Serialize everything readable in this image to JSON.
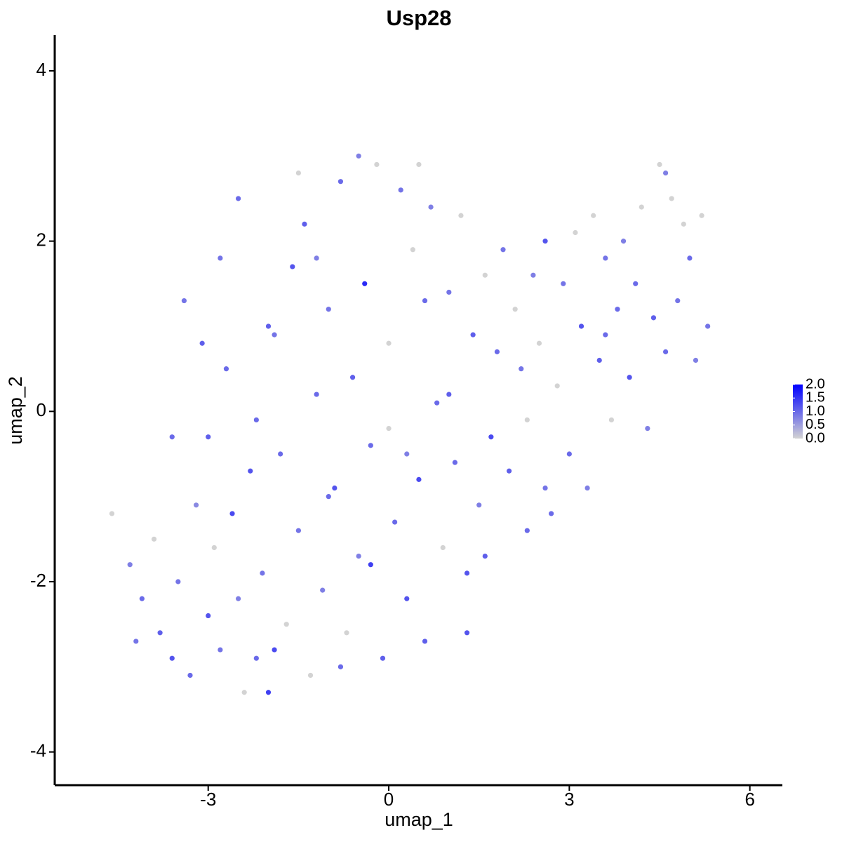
{
  "chart_data": {
    "type": "scatter",
    "title": "Usp28",
    "x_label": "umap_1",
    "y_label": "umap_2",
    "xlim": [
      -5.55,
      6.54
    ],
    "ylim": [
      -4.39,
      4.42
    ],
    "xticks": [
      -3,
      0,
      3,
      6
    ],
    "yticks": [
      -4,
      -2,
      0,
      2,
      4
    ],
    "low_color": "#d3d3d3",
    "high_color": "#0000ff",
    "color_lim": [
      0,
      2
    ],
    "color_ticks": [
      {
        "value": 0,
        "label": "0.0"
      },
      {
        "value": 0.5,
        "label": "0.5"
      },
      {
        "value": 1,
        "label": "1.0"
      },
      {
        "value": 1.5,
        "label": "1.5"
      },
      {
        "value": 2,
        "label": "2.0"
      }
    ],
    "x": [
      -4.6,
      -4.3,
      -4.1,
      -3.9,
      -3.8,
      -3.6,
      -3.5,
      -3.3,
      -3.2,
      -3.0,
      -3.0,
      -2.9,
      -2.8,
      -2.7,
      -2.6,
      -2.5,
      -2.4,
      -2.3,
      -2.2,
      -2.1,
      -2.0,
      -1.9,
      -1.8,
      -1.7,
      -1.6,
      -1.5,
      -1.4,
      -1.3,
      -1.2,
      -1.1,
      -1.0,
      -0.9,
      -0.8,
      -0.7,
      -0.6,
      -0.5,
      -0.4,
      -0.3,
      -0.2,
      -0.1,
      0.0,
      0.1,
      0.2,
      0.3,
      0.4,
      0.5,
      0.6,
      0.7,
      0.8,
      0.9,
      1.0,
      1.1,
      1.2,
      1.3,
      1.4,
      1.5,
      1.6,
      1.7,
      1.8,
      1.9,
      2.0,
      2.1,
      2.2,
      2.3,
      2.4,
      2.5,
      2.6,
      2.7,
      2.8,
      2.9,
      3.0,
      3.1,
      3.2,
      3.3,
      3.4,
      3.5,
      3.6,
      3.7,
      3.8,
      3.9,
      4.0,
      4.1,
      4.2,
      4.3,
      4.4,
      4.5,
      4.6,
      4.7,
      4.8,
      4.9,
      5.0,
      5.1,
      5.2,
      5.3,
      -2.5,
      -1.5,
      -0.5,
      0.5,
      -3.4,
      -2.0,
      -1.0,
      0.0,
      1.0,
      -3.6,
      -2.8,
      -1.9,
      -0.8,
      0.3,
      1.3,
      2.3,
      -4.2,
      -3.1,
      -2.2,
      -1.2,
      -0.3,
      0.6,
      1.6,
      2.6,
      3.6,
      4.6
    ],
    "y": [
      -1.2,
      -1.8,
      -2.2,
      -1.5,
      -2.6,
      -2.9,
      -2.0,
      -3.1,
      -1.1,
      -2.4,
      -0.3,
      -1.6,
      -2.8,
      0.5,
      -1.2,
      -2.2,
      -3.3,
      -0.7,
      -2.9,
      -1.9,
      -3.3,
      0.9,
      -0.5,
      -2.5,
      1.7,
      -1.4,
      2.2,
      -3.1,
      0.2,
      -2.1,
      1.2,
      -0.9,
      2.7,
      -2.6,
      0.4,
      -1.7,
      1.5,
      -0.4,
      2.9,
      -2.9,
      0.8,
      -1.3,
      2.6,
      -2.2,
      1.9,
      -0.8,
      -2.7,
      2.4,
      0.1,
      -1.6,
      1.4,
      -0.6,
      2.3,
      -1.9,
      0.9,
      -1.1,
      1.6,
      -0.3,
      0.7,
      1.9,
      -0.7,
      1.2,
      0.5,
      -1.4,
      1.6,
      0.8,
      2.0,
      -1.2,
      0.3,
      1.5,
      -0.5,
      2.1,
      1.0,
      -0.9,
      2.3,
      0.6,
      1.8,
      -0.1,
      1.2,
      2.0,
      0.4,
      1.5,
      2.4,
      -0.2,
      1.1,
      2.9,
      0.7,
      2.5,
      1.3,
      2.2,
      1.8,
      0.6,
      2.3,
      1.0,
      2.5,
      2.8,
      3.0,
      2.9,
      1.3,
      1.0,
      -1.0,
      -0.2,
      0.2,
      -0.3,
      1.8,
      -2.8,
      -3.0,
      -0.5,
      -2.6,
      -0.1,
      -2.7,
      0.8,
      -0.1,
      1.8,
      -1.8,
      1.3,
      -1.7,
      -0.9,
      0.9,
      2.8
    ],
    "values": [
      0,
      0.8,
      1.0,
      0,
      1.1,
      1.2,
      0.9,
      1.0,
      0.7,
      1.2,
      1.1,
      0,
      0.9,
      1.0,
      1.3,
      0.8,
      0,
      1.2,
      1.0,
      0.9,
      1.4,
      0.9,
      1.0,
      0,
      1.2,
      0.9,
      1.1,
      0,
      1.0,
      0.8,
      0.9,
      1.2,
      1.0,
      0,
      1.1,
      0.8,
      1.6,
      1.0,
      0,
      1.1,
      0,
      1.0,
      0.9,
      1.2,
      0,
      1.3,
      1.1,
      0.8,
      1.0,
      0,
      0.9,
      1.0,
      0,
      1.2,
      1.1,
      0.8,
      0,
      1.3,
      1.0,
      0.9,
      1.1,
      0,
      0.9,
      1.0,
      0.8,
      0,
      1.2,
      1.0,
      0,
      0.9,
      1.0,
      0,
      1.2,
      0.8,
      0,
      1.1,
      0.9,
      0,
      1.0,
      0.8,
      1.2,
      1.0,
      0,
      0.8,
      1.1,
      0,
      1.0,
      0,
      0.9,
      0,
      1.0,
      0.8,
      0,
      0.9,
      1.0,
      0,
      0.8,
      0,
      0.9,
      1.1,
      1.0,
      0,
      1.1,
      1.0,
      0.9,
      1.3,
      1.0,
      0.8,
      1.2,
      0,
      0.9,
      1.1,
      1.0,
      0.8,
      1.4,
      1.0,
      1.1,
      0.9,
      1.0,
      0.8
    ]
  }
}
